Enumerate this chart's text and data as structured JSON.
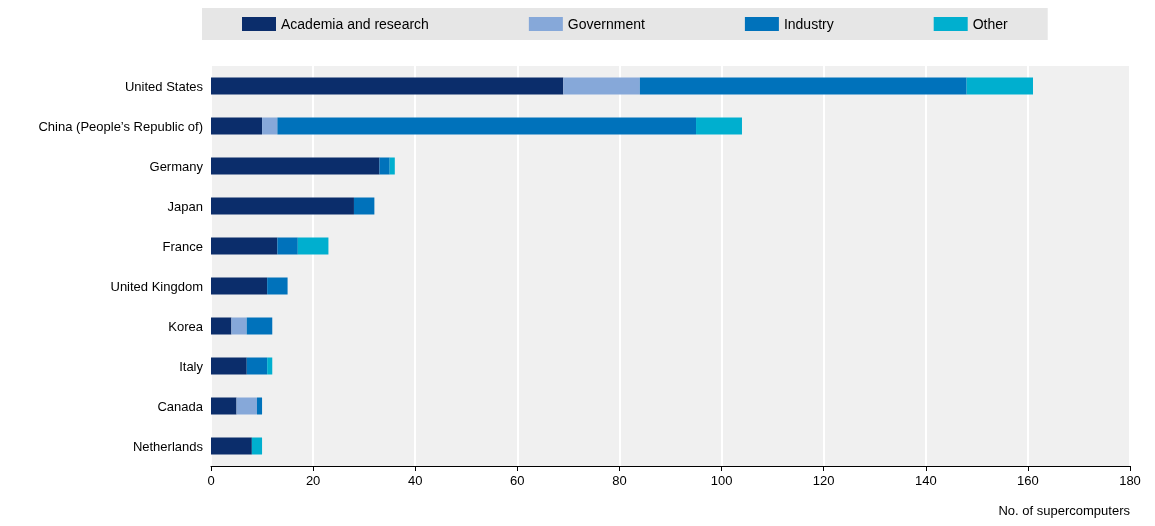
{
  "chart_data": {
    "type": "bar",
    "orientation": "horizontal",
    "stacked": true,
    "xlabel": "No. of supercomputers",
    "categories": [
      "United States",
      "China (People’s Republic of)",
      "Germany",
      "Japan",
      "France",
      "United Kingdom",
      "Korea",
      "Italy",
      "Canada",
      "Netherlands"
    ],
    "series": [
      {
        "name": "Academia and research",
        "color": "#0b2d6b",
        "values": [
          69,
          10,
          33,
          28,
          13,
          11,
          4,
          7,
          5,
          8
        ]
      },
      {
        "name": "Government",
        "color": "#86a8d9",
        "values": [
          15,
          3,
          0,
          0,
          0,
          0,
          3,
          0,
          4,
          0
        ]
      },
      {
        "name": "Industry",
        "color": "#0072bb",
        "values": [
          64,
          82,
          2,
          4,
          4,
          4,
          5,
          4,
          1,
          0
        ]
      },
      {
        "name": "Other",
        "color": "#00afcf",
        "values": [
          13,
          9,
          1,
          0,
          6,
          0,
          0,
          1,
          0,
          2
        ]
      }
    ],
    "xlim": [
      0,
      180
    ],
    "xticks": [
      0,
      20,
      40,
      60,
      80,
      100,
      120,
      140,
      160,
      180
    ],
    "grid": "x",
    "legend": "top"
  }
}
